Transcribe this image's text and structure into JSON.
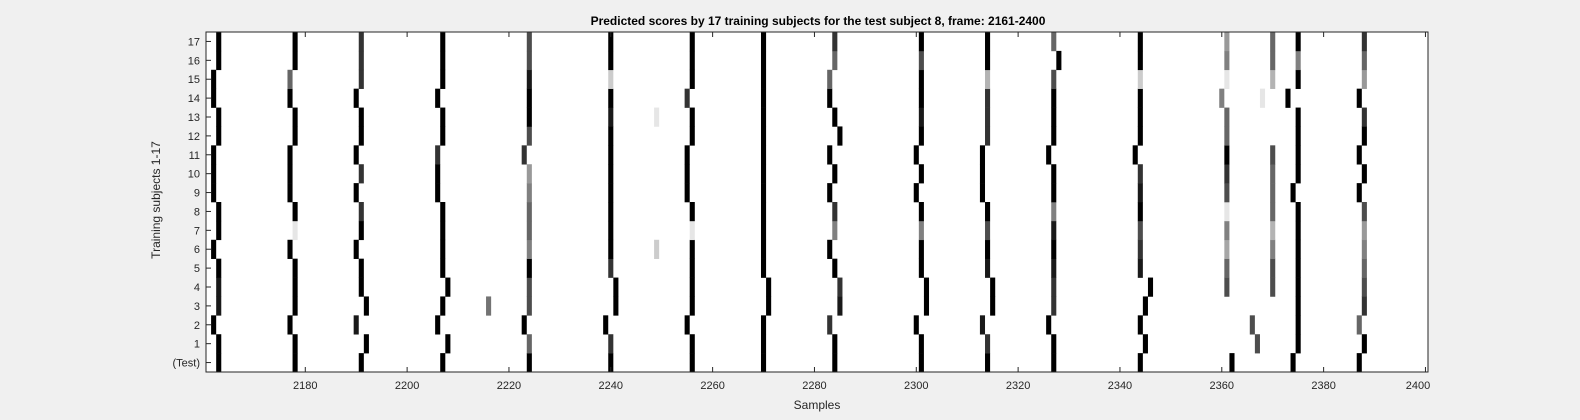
{
  "chart_data": {
    "type": "heatmap",
    "title": "Predicted scores by 17 training subjects for the test subject 8, frame: 2161-2400",
    "xlabel": "Samples",
    "ylabel": "Training subjects 1-17",
    "xlim": [
      2161,
      2400
    ],
    "xticks": [
      "2180",
      "2200",
      "2220",
      "2240",
      "2260",
      "2280",
      "2300",
      "2320",
      "2340",
      "2360",
      "2380",
      "2400"
    ],
    "xtick_values": [
      2180,
      2200,
      2220,
      2240,
      2260,
      2280,
      2300,
      2320,
      2340,
      2360,
      2380,
      2400
    ],
    "yticks": [
      "(Test)",
      "1",
      "2",
      "3",
      "4",
      "5",
      "6",
      "7",
      "8",
      "9",
      "10",
      "11",
      "12",
      "13",
      "14",
      "15",
      "16",
      "17"
    ],
    "colormap": "gray-inverted (white = 0, black = 1)",
    "rows": [
      {
        "label": "(Test)",
        "marks": [
          [
            2163,
            1
          ],
          [
            2178,
            1
          ],
          [
            2191,
            1
          ],
          [
            2207,
            1
          ],
          [
            2224,
            1
          ],
          [
            2240,
            1
          ],
          [
            2256,
            1
          ],
          [
            2270,
            1
          ],
          [
            2284,
            1
          ],
          [
            2301,
            1
          ],
          [
            2314,
            1
          ],
          [
            2327,
            1
          ],
          [
            2344,
            1
          ],
          [
            2362,
            1
          ],
          [
            2374,
            1
          ],
          [
            2387,
            1
          ]
        ]
      },
      {
        "label": "1",
        "marks": [
          [
            2163,
            1
          ],
          [
            2178,
            1
          ],
          [
            2192,
            1
          ],
          [
            2208,
            1
          ],
          [
            2224,
            0.6
          ],
          [
            2240,
            0.8
          ],
          [
            2256,
            1
          ],
          [
            2270,
            1
          ],
          [
            2284,
            1
          ],
          [
            2301,
            1
          ],
          [
            2314,
            0.8
          ],
          [
            2327,
            1
          ],
          [
            2345,
            1
          ],
          [
            2367,
            0.7
          ],
          [
            2375,
            1
          ],
          [
            2388,
            1
          ]
        ]
      },
      {
        "label": "2",
        "marks": [
          [
            2162,
            1
          ],
          [
            2177,
            1
          ],
          [
            2190,
            0.9
          ],
          [
            2206,
            1
          ],
          [
            2223,
            1
          ],
          [
            2239,
            1
          ],
          [
            2255,
            1
          ],
          [
            2270,
            1
          ],
          [
            2283,
            0.8
          ],
          [
            2300,
            1
          ],
          [
            2313,
            0.9
          ],
          [
            2326,
            1
          ],
          [
            2344,
            1
          ],
          [
            2366,
            0.7
          ],
          [
            2375,
            1
          ],
          [
            2387,
            0.6
          ]
        ]
      },
      {
        "label": "3",
        "marks": [
          [
            2163,
            0.9
          ],
          [
            2178,
            1
          ],
          [
            2192,
            1
          ],
          [
            2207,
            1
          ],
          [
            2216,
            0.55
          ],
          [
            2224,
            0.7
          ],
          [
            2241,
            1
          ],
          [
            2256,
            1
          ],
          [
            2271,
            1
          ],
          [
            2285,
            0.9
          ],
          [
            2302,
            1
          ],
          [
            2315,
            1
          ],
          [
            2327,
            0.8
          ],
          [
            2345,
            1
          ],
          [
            2375,
            1
          ],
          [
            2388,
            0.8
          ]
        ]
      },
      {
        "label": "4",
        "marks": [
          [
            2163,
            0.9
          ],
          [
            2178,
            1
          ],
          [
            2191,
            1
          ],
          [
            2208,
            1
          ],
          [
            2224,
            0.7
          ],
          [
            2241,
            1
          ],
          [
            2256,
            1
          ],
          [
            2271,
            1
          ],
          [
            2285,
            0.8
          ],
          [
            2302,
            1
          ],
          [
            2315,
            1
          ],
          [
            2327,
            0.8
          ],
          [
            2346,
            1
          ],
          [
            2361,
            0.7
          ],
          [
            2370,
            0.7
          ],
          [
            2375,
            1
          ],
          [
            2388,
            0.7
          ]
        ]
      },
      {
        "label": "5",
        "marks": [
          [
            2163,
            1
          ],
          [
            2178,
            1
          ],
          [
            2191,
            1
          ],
          [
            2207,
            1
          ],
          [
            2224,
            1
          ],
          [
            2240,
            0.8
          ],
          [
            2256,
            1
          ],
          [
            2270,
            1
          ],
          [
            2284,
            1
          ],
          [
            2301,
            1
          ],
          [
            2314,
            0.9
          ],
          [
            2327,
            0.9
          ],
          [
            2344,
            0.9
          ],
          [
            2361,
            0.6
          ],
          [
            2370,
            0.7
          ],
          [
            2375,
            1
          ],
          [
            2388,
            0.6
          ]
        ]
      },
      {
        "label": "6",
        "marks": [
          [
            2162,
            1
          ],
          [
            2177,
            1
          ],
          [
            2190,
            1
          ],
          [
            2207,
            1
          ],
          [
            2224,
            0.5
          ],
          [
            2240,
            1
          ],
          [
            2249,
            0.2
          ],
          [
            2256,
            1
          ],
          [
            2270,
            1
          ],
          [
            2283,
            1
          ],
          [
            2301,
            1
          ],
          [
            2314,
            1
          ],
          [
            2327,
            1
          ],
          [
            2344,
            0.8
          ],
          [
            2361,
            0.35
          ],
          [
            2370,
            0.5
          ],
          [
            2375,
            1
          ],
          [
            2388,
            0.5
          ]
        ]
      },
      {
        "label": "7",
        "marks": [
          [
            2163,
            1
          ],
          [
            2178,
            0.1
          ],
          [
            2191,
            1
          ],
          [
            2207,
            1
          ],
          [
            2224,
            0.6
          ],
          [
            2240,
            1
          ],
          [
            2256,
            0.1
          ],
          [
            2270,
            1
          ],
          [
            2284,
            0.5
          ],
          [
            2301,
            0.5
          ],
          [
            2314,
            0.7
          ],
          [
            2327,
            0.9
          ],
          [
            2344,
            0.7
          ],
          [
            2361,
            0.5
          ],
          [
            2370,
            0.3
          ],
          [
            2375,
            1
          ],
          [
            2388,
            0.4
          ]
        ]
      },
      {
        "label": "8",
        "marks": [
          [
            2163,
            1
          ],
          [
            2178,
            1
          ],
          [
            2191,
            0.8
          ],
          [
            2207,
            1
          ],
          [
            2224,
            0.6
          ],
          [
            2240,
            1
          ],
          [
            2256,
            1
          ],
          [
            2270,
            1
          ],
          [
            2284,
            0.8
          ],
          [
            2301,
            1
          ],
          [
            2314,
            1
          ],
          [
            2327,
            0.5
          ],
          [
            2344,
            1
          ],
          [
            2361,
            0.1
          ],
          [
            2370,
            0.6
          ],
          [
            2375,
            1
          ],
          [
            2388,
            0.7
          ]
        ]
      },
      {
        "label": "9",
        "marks": [
          [
            2162,
            1
          ],
          [
            2177,
            1
          ],
          [
            2190,
            1
          ],
          [
            2206,
            1
          ],
          [
            2224,
            0.5
          ],
          [
            2240,
            1
          ],
          [
            2255,
            1
          ],
          [
            2270,
            1
          ],
          [
            2283,
            1
          ],
          [
            2300,
            1
          ],
          [
            2313,
            1
          ],
          [
            2327,
            1
          ],
          [
            2344,
            0.9
          ],
          [
            2361,
            0.7
          ],
          [
            2370,
            0.6
          ],
          [
            2374,
            1
          ],
          [
            2387,
            1
          ]
        ]
      },
      {
        "label": "10",
        "marks": [
          [
            2162,
            1
          ],
          [
            2177,
            1
          ],
          [
            2191,
            0.8
          ],
          [
            2206,
            1
          ],
          [
            2224,
            0.4
          ],
          [
            2240,
            1
          ],
          [
            2255,
            1
          ],
          [
            2270,
            1
          ],
          [
            2284,
            1
          ],
          [
            2301,
            1
          ],
          [
            2313,
            1
          ],
          [
            2327,
            1
          ],
          [
            2344,
            0.8
          ],
          [
            2361,
            0.8
          ],
          [
            2370,
            0.6
          ],
          [
            2375,
            1
          ],
          [
            2388,
            1
          ]
        ]
      },
      {
        "label": "11",
        "marks": [
          [
            2162,
            1
          ],
          [
            2177,
            1
          ],
          [
            2190,
            1
          ],
          [
            2206,
            0.8
          ],
          [
            2223,
            0.8
          ],
          [
            2240,
            1
          ],
          [
            2255,
            1
          ],
          [
            2270,
            1
          ],
          [
            2283,
            1
          ],
          [
            2300,
            1
          ],
          [
            2313,
            1
          ],
          [
            2326,
            1
          ],
          [
            2343,
            1
          ],
          [
            2361,
            1
          ],
          [
            2370,
            0.7
          ],
          [
            2375,
            1
          ],
          [
            2387,
            1
          ]
        ]
      },
      {
        "label": "12",
        "marks": [
          [
            2163,
            1
          ],
          [
            2178,
            1
          ],
          [
            2191,
            1
          ],
          [
            2207,
            1
          ],
          [
            2224,
            0.7
          ],
          [
            2240,
            1
          ],
          [
            2256,
            1
          ],
          [
            2270,
            1
          ],
          [
            2285,
            1
          ],
          [
            2301,
            1
          ],
          [
            2314,
            0.8
          ],
          [
            2327,
            1
          ],
          [
            2344,
            1
          ],
          [
            2361,
            0.6
          ],
          [
            2375,
            1
          ],
          [
            2388,
            1
          ]
        ]
      },
      {
        "label": "13",
        "marks": [
          [
            2163,
            1
          ],
          [
            2178,
            1
          ],
          [
            2191,
            1
          ],
          [
            2207,
            1
          ],
          [
            2224,
            1
          ],
          [
            2240,
            0.9
          ],
          [
            2249,
            0.1
          ],
          [
            2256,
            1
          ],
          [
            2270,
            1
          ],
          [
            2284,
            1
          ],
          [
            2301,
            0.9
          ],
          [
            2314,
            0.8
          ],
          [
            2327,
            1
          ],
          [
            2344,
            1
          ],
          [
            2361,
            0.6
          ],
          [
            2375,
            1
          ],
          [
            2388,
            0.8
          ]
        ]
      },
      {
        "label": "14",
        "marks": [
          [
            2162,
            1
          ],
          [
            2177,
            1
          ],
          [
            2190,
            1
          ],
          [
            2206,
            1
          ],
          [
            2224,
            1
          ],
          [
            2240,
            1
          ],
          [
            2255,
            0.8
          ],
          [
            2270,
            1
          ],
          [
            2283,
            1
          ],
          [
            2301,
            1
          ],
          [
            2314,
            0.8
          ],
          [
            2327,
            1
          ],
          [
            2344,
            1
          ],
          [
            2360,
            0.5
          ],
          [
            2368,
            0.1
          ],
          [
            2373,
            1
          ],
          [
            2387,
            1
          ]
        ]
      },
      {
        "label": "15",
        "marks": [
          [
            2162,
            1
          ],
          [
            2177,
            0.6
          ],
          [
            2191,
            0.8
          ],
          [
            2207,
            1
          ],
          [
            2224,
            0.9
          ],
          [
            2240,
            0.2
          ],
          [
            2256,
            1
          ],
          [
            2270,
            1
          ],
          [
            2283,
            0.6
          ],
          [
            2301,
            1
          ],
          [
            2314,
            0.3
          ],
          [
            2327,
            0.7
          ],
          [
            2344,
            0.2
          ],
          [
            2361,
            0.1
          ],
          [
            2370,
            0.3
          ],
          [
            2375,
            1
          ],
          [
            2388,
            0.4
          ]
        ]
      },
      {
        "label": "16",
        "marks": [
          [
            2163,
            1
          ],
          [
            2178,
            1
          ],
          [
            2191,
            0.8
          ],
          [
            2207,
            1
          ],
          [
            2224,
            0.7
          ],
          [
            2240,
            1
          ],
          [
            2256,
            1
          ],
          [
            2270,
            1
          ],
          [
            2284,
            0.6
          ],
          [
            2301,
            0.7
          ],
          [
            2314,
            1
          ],
          [
            2328,
            1
          ],
          [
            2344,
            1
          ],
          [
            2361,
            0.5
          ],
          [
            2370,
            0.6
          ],
          [
            2375,
            0.5
          ],
          [
            2388,
            0.6
          ]
        ]
      },
      {
        "label": "17",
        "marks": [
          [
            2163,
            1
          ],
          [
            2178,
            1
          ],
          [
            2191,
            0.8
          ],
          [
            2207,
            1
          ],
          [
            2224,
            0.7
          ],
          [
            2240,
            1
          ],
          [
            2256,
            1
          ],
          [
            2270,
            1
          ],
          [
            2284,
            0.8
          ],
          [
            2301,
            1
          ],
          [
            2314,
            1
          ],
          [
            2327,
            0.6
          ],
          [
            2344,
            1
          ],
          [
            2361,
            0.4
          ],
          [
            2370,
            0.6
          ],
          [
            2375,
            1
          ],
          [
            2388,
            0.8
          ]
        ]
      }
    ]
  }
}
